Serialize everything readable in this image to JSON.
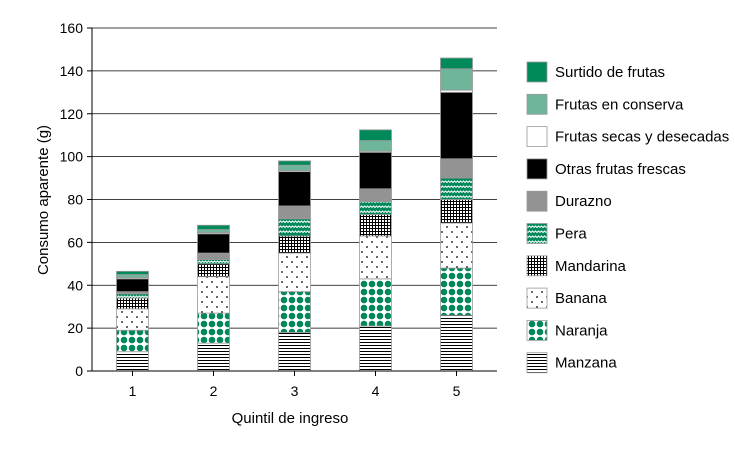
{
  "chart_data": {
    "type": "bar",
    "stacked": true,
    "categories": [
      "1",
      "2",
      "3",
      "4",
      "5"
    ],
    "xlabel": "Quintil de ingreso",
    "ylabel": "Consumo aparente (g)",
    "ylim": [
      0,
      160
    ],
    "yticks": [
      0,
      20,
      40,
      60,
      80,
      100,
      120,
      140,
      160
    ],
    "grid": "horizontal",
    "legend_position": "right",
    "series": [
      {
        "name": "Manzana",
        "pattern": "hlines",
        "color": "#000000",
        "values": [
          9,
          13,
          18,
          21,
          26
        ]
      },
      {
        "name": "Naranja",
        "pattern": "dots-green",
        "color": "#00875a",
        "values": [
          10,
          14,
          19,
          22,
          22
        ]
      },
      {
        "name": "Banana",
        "pattern": "sparse-dots",
        "color": "#000000",
        "values": [
          10,
          17,
          18,
          20,
          21
        ]
      },
      {
        "name": "Mandarina",
        "pattern": "grid",
        "color": "#000000",
        "values": [
          5,
          6,
          8,
          10,
          11
        ]
      },
      {
        "name": "Pera",
        "pattern": "waves-green",
        "color": "#00875a",
        "values": [
          2,
          2,
          8,
          6,
          10
        ]
      },
      {
        "name": "Durazno",
        "pattern": "solid",
        "color": "#939393",
        "values": [
          1,
          3,
          6,
          6,
          9
        ]
      },
      {
        "name": "Otras frutas frescas",
        "pattern": "solid",
        "color": "#000000",
        "values": [
          6,
          9,
          16,
          17,
          31
        ]
      },
      {
        "name": "Frutas secas y desecadas",
        "pattern": "solid",
        "color": "#ffffff",
        "values": [
          0.5,
          0.5,
          0.5,
          0.5,
          1
        ]
      },
      {
        "name": "Frutas en conserva",
        "pattern": "solid",
        "color": "#6fb59a",
        "values": [
          1.5,
          1.5,
          2.5,
          5,
          10
        ]
      },
      {
        "name": "Surtido de frutas",
        "pattern": "solid",
        "color": "#008a5a",
        "values": [
          1.5,
          2,
          2,
          5,
          5
        ]
      }
    ]
  }
}
